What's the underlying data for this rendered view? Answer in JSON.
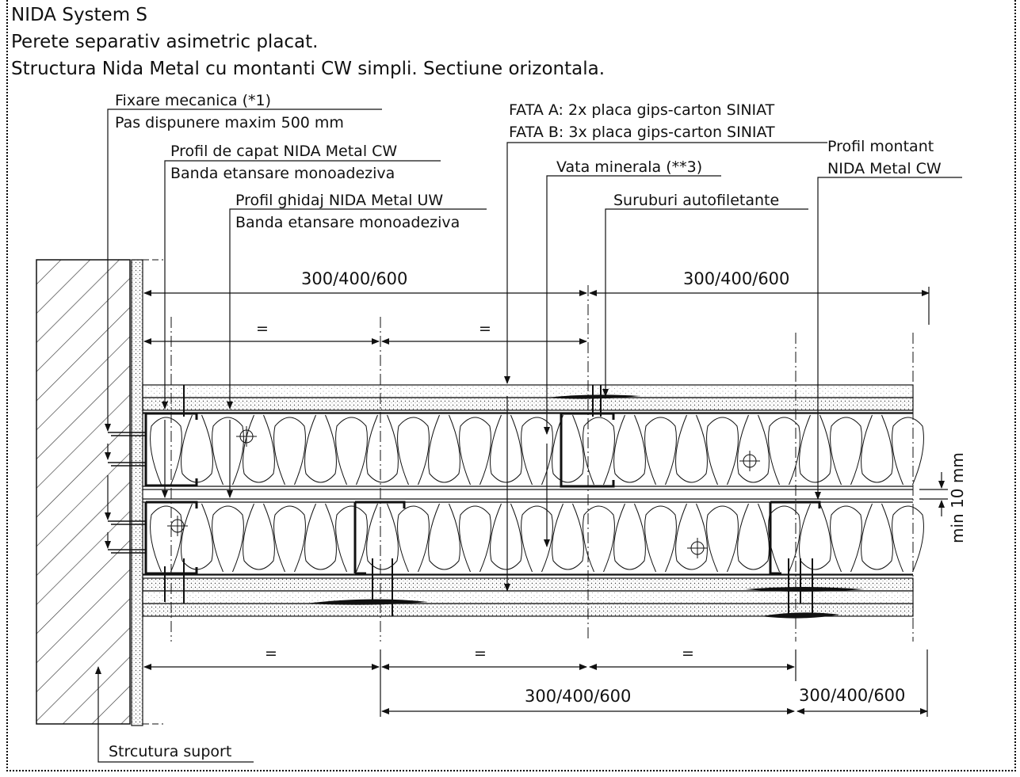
{
  "title": {
    "line1": "NIDA System S",
    "line2": "Perete separativ asimetric placat.",
    "line3": "Structura Nida Metal cu montanti CW simpli. Sectiune orizontala."
  },
  "callouts": {
    "fixare_1": "Fixare mecanica (*1)",
    "fixare_2": "Pas dispunere maxim 500 mm",
    "capat_1": "Profil de capat NIDA Metal CW",
    "capat_2": "Banda etansare monoadeziva",
    "ghidaj_1": "Profil ghidaj NIDA Metal UW",
    "ghidaj_2": "Banda etansare monoadeziva",
    "fata_a": "FATA A: 2x placa gips-carton SINIAT",
    "fata_b": "FATA B: 3x placa gips-carton SINIAT",
    "montant_1": "Profil montant",
    "montant_2": "NIDA Metal CW",
    "vata": "Vata minerala (**3)",
    "suruburi": "Suruburi autofiletante",
    "structura": "Strcutura suport"
  },
  "dimensions": {
    "top_left": "300/400/600",
    "top_right": "300/400/600",
    "bottom_mid": "300/400/600",
    "bottom_right": "300/400/600",
    "equal": "=",
    "gap": "min 10 mm"
  },
  "colors": {
    "line": "#111111",
    "hatch": "#333333",
    "board_fill": "#f4f4f4"
  }
}
